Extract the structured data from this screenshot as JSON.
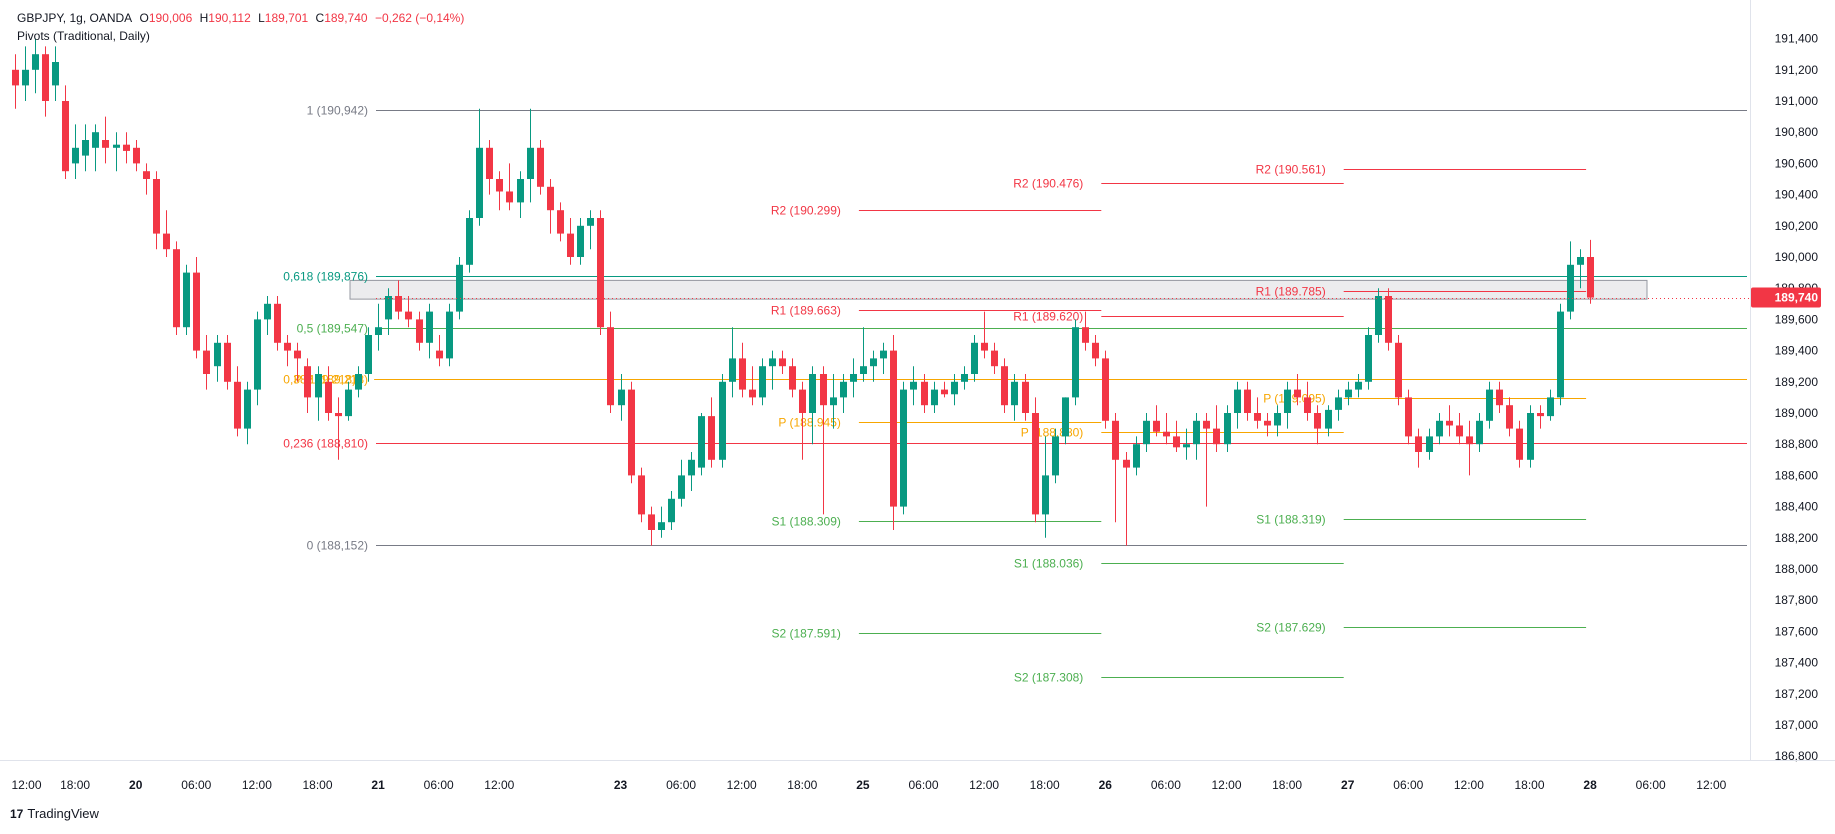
{
  "header": {
    "symbol": "GBPJPY, 1g, OANDA",
    "o_label": "O",
    "o_value": "190,006",
    "h_label": "H",
    "h_value": "190,112",
    "l_label": "L",
    "l_value": "189,701",
    "c_label": "C",
    "c_value": "189,740",
    "change": "−0,262 (−0,14%)",
    "indicator": "Pivots (Traditional, Daily)"
  },
  "brand": {
    "logo_text": "17",
    "name": "TradingView"
  },
  "colors": {
    "up": "#089981",
    "down": "#f23645",
    "pivot": "#f7a600",
    "support": "#4caf50",
    "fib_gray": "#787b86",
    "fib_teal": "#089981"
  },
  "chart_data": {
    "type": "candlestick",
    "symbol": "GBPJPY",
    "interval": "1g",
    "price_axis": {
      "ylim": [
        186.6,
        191.6
      ],
      "ticks": [
        "186,800",
        "187,000",
        "187,200",
        "187,400",
        "187,600",
        "187,800",
        "188,000",
        "188,200",
        "188,400",
        "188,600",
        "188,800",
        "189,000",
        "189,200",
        "189,400",
        "189,600",
        "189,800",
        "190,000",
        "190,200",
        "190,400",
        "190,600",
        "190,800",
        "191,000",
        "191,200",
        "191,400"
      ],
      "tick_values": [
        186.8,
        187.0,
        187.2,
        187.4,
        187.6,
        187.8,
        188.0,
        188.2,
        188.4,
        188.6,
        188.8,
        189.0,
        189.2,
        189.4,
        189.6,
        189.8,
        190.0,
        190.2,
        190.4,
        190.6,
        190.8,
        191.0,
        191.2,
        191.4
      ],
      "last_price": "189,740",
      "last_value": 189.74
    },
    "time_axis": {
      "labels": [
        "12:00",
        "18:00",
        "20",
        "06:00",
        "12:00",
        "18:00",
        "21",
        "06:00",
        "12:00",
        "23",
        "06:00",
        "12:00",
        "18:00",
        "25",
        "06:00",
        "12:00",
        "18:00",
        "26",
        "06:00",
        "12:00",
        "18:00",
        "27",
        "06:00",
        "12:00",
        "18:00",
        "28",
        "06:00",
        "12:00"
      ],
      "bold": [
        false,
        false,
        true,
        false,
        false,
        false,
        true,
        false,
        false,
        true,
        false,
        false,
        false,
        true,
        false,
        false,
        false,
        true,
        false,
        false,
        false,
        true,
        false,
        false,
        false,
        true,
        false,
        false
      ],
      "label_bar_index": [
        0,
        6,
        12,
        18,
        24,
        30,
        36,
        42,
        48,
        60,
        66,
        72,
        78,
        84,
        90,
        96,
        102,
        108,
        114,
        120,
        126,
        132,
        138,
        144,
        150,
        156,
        162,
        168
      ]
    },
    "candles": [
      [
        191.2,
        191.3,
        190.95,
        191.1
      ],
      [
        191.1,
        191.35,
        191.0,
        191.2
      ],
      [
        191.2,
        191.4,
        191.05,
        191.3
      ],
      [
        191.3,
        191.35,
        190.9,
        191.0
      ],
      [
        191.1,
        191.35,
        191.0,
        191.25
      ],
      [
        191.0,
        191.1,
        190.5,
        190.55
      ],
      [
        190.6,
        190.85,
        190.5,
        190.7
      ],
      [
        190.65,
        190.85,
        190.55,
        190.75
      ],
      [
        190.7,
        190.85,
        190.55,
        190.8
      ],
      [
        190.75,
        190.9,
        190.6,
        190.7
      ],
      [
        190.7,
        190.8,
        190.55,
        190.72
      ],
      [
        190.72,
        190.8,
        190.6,
        190.68
      ],
      [
        190.7,
        190.75,
        190.55,
        190.6
      ],
      [
        190.55,
        190.6,
        190.4,
        190.5
      ],
      [
        190.5,
        190.55,
        190.05,
        190.15
      ],
      [
        190.15,
        190.3,
        190.0,
        190.05
      ],
      [
        190.05,
        190.1,
        189.5,
        189.55
      ],
      [
        189.55,
        189.95,
        189.5,
        189.9
      ],
      [
        189.9,
        190.0,
        189.35,
        189.4
      ],
      [
        189.4,
        189.5,
        189.15,
        189.25
      ],
      [
        189.3,
        189.5,
        189.2,
        189.45
      ],
      [
        189.45,
        189.5,
        189.15,
        189.2
      ],
      [
        189.2,
        189.3,
        188.85,
        188.9
      ],
      [
        188.9,
        189.2,
        188.8,
        189.15
      ],
      [
        189.15,
        189.65,
        189.05,
        189.6
      ],
      [
        189.6,
        189.75,
        189.5,
        189.7
      ],
      [
        189.7,
        189.75,
        189.4,
        189.45
      ],
      [
        189.45,
        189.5,
        189.3,
        189.4
      ],
      [
        189.4,
        189.45,
        189.2,
        189.35
      ],
      [
        189.3,
        189.35,
        189.0,
        189.1
      ],
      [
        189.1,
        189.3,
        188.95,
        189.25
      ],
      [
        189.2,
        189.3,
        188.95,
        189.0
      ],
      [
        189.0,
        189.1,
        188.7,
        188.98
      ],
      [
        188.98,
        189.2,
        188.95,
        189.15
      ],
      [
        189.15,
        189.3,
        189.1,
        189.25
      ],
      [
        189.25,
        189.55,
        189.2,
        189.5
      ],
      [
        189.5,
        189.7,
        189.4,
        189.55
      ],
      [
        189.6,
        189.8,
        189.5,
        189.75
      ],
      [
        189.75,
        189.85,
        189.6,
        189.65
      ],
      [
        189.65,
        189.75,
        189.55,
        189.6
      ],
      [
        189.6,
        189.65,
        189.4,
        189.45
      ],
      [
        189.45,
        189.7,
        189.35,
        189.65
      ],
      [
        189.4,
        189.5,
        189.3,
        189.35
      ],
      [
        189.35,
        189.7,
        189.3,
        189.65
      ],
      [
        189.65,
        190.0,
        189.6,
        189.95
      ],
      [
        189.95,
        190.3,
        189.9,
        190.25
      ],
      [
        190.25,
        190.95,
        190.2,
        190.7
      ],
      [
        190.7,
        190.75,
        190.4,
        190.5
      ],
      [
        190.5,
        190.55,
        190.3,
        190.42
      ],
      [
        190.42,
        190.6,
        190.3,
        190.35
      ],
      [
        190.35,
        190.55,
        190.25,
        190.5
      ],
      [
        190.5,
        190.95,
        190.35,
        190.7
      ],
      [
        190.7,
        190.75,
        190.4,
        190.45
      ],
      [
        190.45,
        190.5,
        190.15,
        190.3
      ],
      [
        190.3,
        190.35,
        190.1,
        190.15
      ],
      [
        190.15,
        190.25,
        189.95,
        190.0
      ],
      [
        190.0,
        190.25,
        189.95,
        190.2
      ],
      [
        190.2,
        190.3,
        190.05,
        190.25
      ],
      [
        190.25,
        190.3,
        189.5,
        189.55
      ],
      [
        189.55,
        189.65,
        189.0,
        189.05
      ],
      [
        189.05,
        189.25,
        188.95,
        189.15
      ],
      [
        189.15,
        189.2,
        188.55,
        188.6
      ],
      [
        188.6,
        188.65,
        188.3,
        188.35
      ],
      [
        188.35,
        188.4,
        188.15,
        188.25
      ],
      [
        188.25,
        188.4,
        188.2,
        188.3
      ],
      [
        188.3,
        188.5,
        188.25,
        188.45
      ],
      [
        188.45,
        188.7,
        188.4,
        188.6
      ],
      [
        188.6,
        188.75,
        188.5,
        188.7
      ],
      [
        188.65,
        189.0,
        188.6,
        188.98
      ],
      [
        188.98,
        189.1,
        188.65,
        188.7
      ],
      [
        188.7,
        189.25,
        188.65,
        189.2
      ],
      [
        189.2,
        189.55,
        189.1,
        189.35
      ],
      [
        189.35,
        189.45,
        189.1,
        189.15
      ],
      [
        189.15,
        189.3,
        189.05,
        189.1
      ],
      [
        189.1,
        189.35,
        189.05,
        189.3
      ],
      [
        189.3,
        189.4,
        189.15,
        189.35
      ],
      [
        189.35,
        189.4,
        189.25,
        189.3
      ],
      [
        189.3,
        189.35,
        189.1,
        189.15
      ],
      [
        189.15,
        189.2,
        188.7,
        189.0
      ],
      [
        189.0,
        189.3,
        188.8,
        189.25
      ],
      [
        189.25,
        189.3,
        188.35,
        189.05
      ],
      [
        189.05,
        189.25,
        188.9,
        189.1
      ],
      [
        189.1,
        189.25,
        189.0,
        189.2
      ],
      [
        189.2,
        189.35,
        189.1,
        189.25
      ],
      [
        189.25,
        189.55,
        189.2,
        189.3
      ],
      [
        189.3,
        189.4,
        189.2,
        189.35
      ],
      [
        189.35,
        189.45,
        189.25,
        189.4
      ],
      [
        189.4,
        189.5,
        188.25,
        188.4
      ],
      [
        188.4,
        189.2,
        188.35,
        189.15
      ],
      [
        189.15,
        189.3,
        189.05,
        189.2
      ],
      [
        189.2,
        189.25,
        189.0,
        189.05
      ],
      [
        189.05,
        189.2,
        189.0,
        189.15
      ],
      [
        189.15,
        189.2,
        189.1,
        189.12
      ],
      [
        189.12,
        189.25,
        189.05,
        189.2
      ],
      [
        189.2,
        189.3,
        189.15,
        189.25
      ],
      [
        189.25,
        189.5,
        189.2,
        189.45
      ],
      [
        189.45,
        189.65,
        189.35,
        189.4
      ],
      [
        189.4,
        189.45,
        189.25,
        189.3
      ],
      [
        189.3,
        189.35,
        189.0,
        189.05
      ],
      [
        189.05,
        189.25,
        188.95,
        189.2
      ],
      [
        189.2,
        189.25,
        188.95,
        189.0
      ],
      [
        189.0,
        189.1,
        188.3,
        188.35
      ],
      [
        188.35,
        188.85,
        188.2,
        188.6
      ],
      [
        188.6,
        188.9,
        188.55,
        188.85
      ],
      [
        188.85,
        189.1,
        188.8,
        189.1
      ],
      [
        189.1,
        189.6,
        189.05,
        189.55
      ],
      [
        189.55,
        189.65,
        189.4,
        189.45
      ],
      [
        189.45,
        189.5,
        189.3,
        189.35
      ],
      [
        189.35,
        189.4,
        188.9,
        188.95
      ],
      [
        188.95,
        189.0,
        188.3,
        188.7
      ],
      [
        188.7,
        188.75,
        188.15,
        188.65
      ],
      [
        188.65,
        188.85,
        188.6,
        188.8
      ],
      [
        188.8,
        189.0,
        188.75,
        188.95
      ],
      [
        188.95,
        189.05,
        188.85,
        188.88
      ],
      [
        188.88,
        189.0,
        188.8,
        188.85
      ],
      [
        188.85,
        188.95,
        188.75,
        188.78
      ],
      [
        188.78,
        188.9,
        188.7,
        188.8
      ],
      [
        188.8,
        189.0,
        188.7,
        188.95
      ],
      [
        188.95,
        189.0,
        188.4,
        188.9
      ],
      [
        188.9,
        189.05,
        188.75,
        188.8
      ],
      [
        188.8,
        189.05,
        188.75,
        189.0
      ],
      [
        189.0,
        189.2,
        188.9,
        189.15
      ],
      [
        189.15,
        189.2,
        188.95,
        189.0
      ],
      [
        189.0,
        189.1,
        188.9,
        188.95
      ],
      [
        188.95,
        189.0,
        188.85,
        188.92
      ],
      [
        188.92,
        189.05,
        188.85,
        189.0
      ],
      [
        189.0,
        189.2,
        188.9,
        189.15
      ],
      [
        189.15,
        189.25,
        189.05,
        189.1
      ],
      [
        189.1,
        189.2,
        188.95,
        189.0
      ],
      [
        189.0,
        189.05,
        188.8,
        188.9
      ],
      [
        188.9,
        189.05,
        188.85,
        189.02
      ],
      [
        189.02,
        189.15,
        188.95,
        189.1
      ],
      [
        189.1,
        189.2,
        189.05,
        189.15
      ],
      [
        189.15,
        189.25,
        189.1,
        189.2
      ],
      [
        189.2,
        189.55,
        189.15,
        189.5
      ],
      [
        189.5,
        189.8,
        189.45,
        189.75
      ],
      [
        189.75,
        189.8,
        189.4,
        189.45
      ],
      [
        189.45,
        189.5,
        189.05,
        189.1
      ],
      [
        189.1,
        189.15,
        188.8,
        188.85
      ],
      [
        188.85,
        188.9,
        188.65,
        188.75
      ],
      [
        188.75,
        188.9,
        188.7,
        188.85
      ],
      [
        188.85,
        189.0,
        188.8,
        188.95
      ],
      [
        188.95,
        189.05,
        188.85,
        188.92
      ],
      [
        188.92,
        189.0,
        188.8,
        188.85
      ],
      [
        188.85,
        188.95,
        188.6,
        188.8
      ],
      [
        188.8,
        189.0,
        188.75,
        188.95
      ],
      [
        188.95,
        189.2,
        188.9,
        189.15
      ],
      [
        189.15,
        189.2,
        189.0,
        189.05
      ],
      [
        189.05,
        189.1,
        188.85,
        188.9
      ],
      [
        188.9,
        188.95,
        188.65,
        188.7
      ],
      [
        188.7,
        189.05,
        188.65,
        189.0
      ],
      [
        189.0,
        189.05,
        188.9,
        188.98
      ],
      [
        188.98,
        189.15,
        188.95,
        189.1
      ],
      [
        189.1,
        189.7,
        189.05,
        189.65
      ],
      [
        189.65,
        190.1,
        189.6,
        189.95
      ],
      [
        189.95,
        190.05,
        189.8,
        190.0
      ],
      [
        190.0,
        190.11,
        189.7,
        189.74
      ]
    ],
    "pivot_sets": [
      {
        "levels": [
          {
            "label": "R2 (190.299)",
            "value": 190.299,
            "color": "#f23645"
          },
          {
            "label": "R1 (189.663)",
            "value": 189.663,
            "color": "#f23645"
          },
          {
            "label": "P (188.945)",
            "value": 188.945,
            "color": "#f7a600"
          },
          {
            "label": "S1 (188.309)",
            "value": 188.309,
            "color": "#4caf50"
          },
          {
            "label": "S2 (187.591)",
            "value": 187.591,
            "color": "#4caf50"
          }
        ],
        "bar_range": [
          84,
          108
        ]
      },
      {
        "levels": [
          {
            "label": "R2 (190.476)",
            "value": 190.476,
            "color": "#f23645"
          },
          {
            "label": "R1 (189.620)",
            "value": 189.62,
            "color": "#f23645"
          },
          {
            "label": "P (188.880)",
            "value": 188.88,
            "color": "#f7a600"
          },
          {
            "label": "S1 (188.036)",
            "value": 188.036,
            "color": "#4caf50"
          },
          {
            "label": "S2 (187.308)",
            "value": 187.308,
            "color": "#4caf50"
          }
        ],
        "bar_range": [
          108,
          132
        ]
      },
      {
        "levels": [
          {
            "label": "R2 (190.561)",
            "value": 190.561,
            "color": "#f23645"
          },
          {
            "label": "R1 (189.785)",
            "value": 189.785,
            "color": "#f23645"
          },
          {
            "label": "P (189.095)",
            "value": 189.095,
            "color": "#f7a600"
          },
          {
            "label": "S1 (188.319)",
            "value": 188.319,
            "color": "#4caf50"
          },
          {
            "label": "S2 (187.629)",
            "value": 187.629,
            "color": "#4caf50"
          }
        ],
        "bar_range": [
          132,
          156
        ]
      },
      {
        "levels": [
          {
            "label": "P (189.218)",
            "value": 189.218,
            "color": "#f7a600"
          }
        ],
        "bar_range": [
          36,
          168
        ]
      }
    ],
    "fib_levels": [
      {
        "label": "1 (190,942)",
        "value": 190.942,
        "color": "#787b86"
      },
      {
        "label": "0,618 (189,876)",
        "value": 189.876,
        "color": "#089981"
      },
      {
        "label": "0,5 (189,547)",
        "value": 189.547,
        "color": "#4caf50"
      },
      {
        "label": "0,382 (189,218)",
        "value": 189.218,
        "color": "#f7a600"
      },
      {
        "label": "0,236 (188,810)",
        "value": 188.81,
        "color": "#f23645"
      },
      {
        "label": "0 (188,152)",
        "value": 188.152,
        "color": "#787b86"
      }
    ],
    "zone": {
      "top": 189.85,
      "bottom": 189.73
    }
  }
}
